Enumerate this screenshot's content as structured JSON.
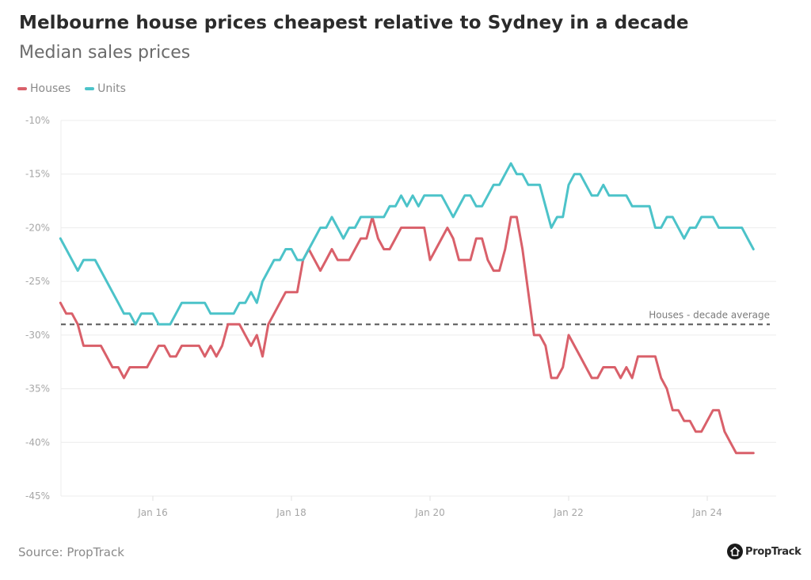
{
  "header": {
    "title": "Melbourne house prices cheapest relative to Sydney in a decade",
    "subtitle": "Median sales prices"
  },
  "legend": [
    {
      "label": "Houses",
      "color": "#d9606a"
    },
    {
      "label": "Units",
      "color": "#4cc3c9"
    }
  ],
  "footer": {
    "source": "Source: PropTrack",
    "logo_text": "PropTrack",
    "logo_icon": "house-icon"
  },
  "chart_data": {
    "type": "line",
    "title": "Melbourne house prices cheapest relative to Sydney in a decade",
    "subtitle": "Median sales prices",
    "xlabel": "",
    "ylabel": "",
    "x_start": "2014-09",
    "x_frequency": "monthly",
    "x_range": [
      "2014-09",
      "2024-09"
    ],
    "x_ticks": [
      {
        "label": "Jan 16",
        "date": "2016-01"
      },
      {
        "label": "Jan 18",
        "date": "2018-01"
      },
      {
        "label": "Jan 20",
        "date": "2020-01"
      },
      {
        "label": "Jan 22",
        "date": "2022-01"
      },
      {
        "label": "Jan 24",
        "date": "2024-01"
      }
    ],
    "ylim": [
      -45,
      -10
    ],
    "y_ticks": [
      -10,
      -15,
      -20,
      -25,
      -30,
      -35,
      -40,
      -45
    ],
    "y_tick_format": "{v}%",
    "grid": true,
    "legend_position": "top-left",
    "reference_line": {
      "label": "Houses - decade average",
      "value": -29,
      "style": "dashed",
      "color": "#555555"
    },
    "series": [
      {
        "name": "Houses",
        "color": "#d9606a",
        "values": [
          -27,
          -28,
          -28,
          -29,
          -31,
          -31,
          -31,
          -31,
          -32,
          -33,
          -33,
          -34,
          -33,
          -33,
          -33,
          -33,
          -32,
          -31,
          -31,
          -32,
          -32,
          -31,
          -31,
          -31,
          -31,
          -32,
          -31,
          -32,
          -31,
          -29,
          -29,
          -29,
          -30,
          -31,
          -30,
          -32,
          -29,
          -28,
          -27,
          -26,
          -26,
          -26,
          -23,
          -22,
          -23,
          -24,
          -23,
          -22,
          -23,
          -23,
          -23,
          -22,
          -21,
          -21,
          -19,
          -21,
          -22,
          -22,
          -21,
          -20,
          -20,
          -20,
          -20,
          -20,
          -23,
          -22,
          -21,
          -20,
          -21,
          -23,
          -23,
          -23,
          -21,
          -21,
          -23,
          -24,
          -24,
          -22,
          -19,
          -19,
          -22,
          -26,
          -30,
          -30,
          -31,
          -34,
          -34,
          -33,
          -30,
          -31,
          -32,
          -33,
          -34,
          -34,
          -33,
          -33,
          -33,
          -34,
          -33,
          -34,
          -32,
          -32,
          -32,
          -32,
          -34,
          -35,
          -37,
          -37,
          -38,
          -38,
          -39,
          -39,
          -38,
          -37,
          -37,
          -39,
          -40,
          -41,
          -41,
          -41,
          -41
        ]
      },
      {
        "name": "Units",
        "color": "#4cc3c9",
        "values": [
          -21,
          -22,
          -23,
          -24,
          -23,
          -23,
          -23,
          -24,
          -25,
          -26,
          -27,
          -28,
          -28,
          -29,
          -28,
          -28,
          -28,
          -29,
          -29,
          -29,
          -28,
          -27,
          -27,
          -27,
          -27,
          -27,
          -28,
          -28,
          -28,
          -28,
          -28,
          -27,
          -27,
          -26,
          -27,
          -25,
          -24,
          -23,
          -23,
          -22,
          -22,
          -23,
          -23,
          -22,
          -21,
          -20,
          -20,
          -19,
          -20,
          -21,
          -20,
          -20,
          -19,
          -19,
          -19,
          -19,
          -19,
          -18,
          -18,
          -17,
          -18,
          -17,
          -18,
          -17,
          -17,
          -17,
          -17,
          -18,
          -19,
          -18,
          -17,
          -17,
          -18,
          -18,
          -17,
          -16,
          -16,
          -15,
          -14,
          -15,
          -15,
          -16,
          -16,
          -16,
          -18,
          -20,
          -19,
          -19,
          -16,
          -15,
          -15,
          -16,
          -17,
          -17,
          -16,
          -17,
          -17,
          -17,
          -17,
          -18,
          -18,
          -18,
          -18,
          -20,
          -20,
          -19,
          -19,
          -20,
          -21,
          -20,
          -20,
          -19,
          -19,
          -19,
          -20,
          -20,
          -20,
          -20,
          -20,
          -21,
          -22
        ]
      }
    ]
  }
}
